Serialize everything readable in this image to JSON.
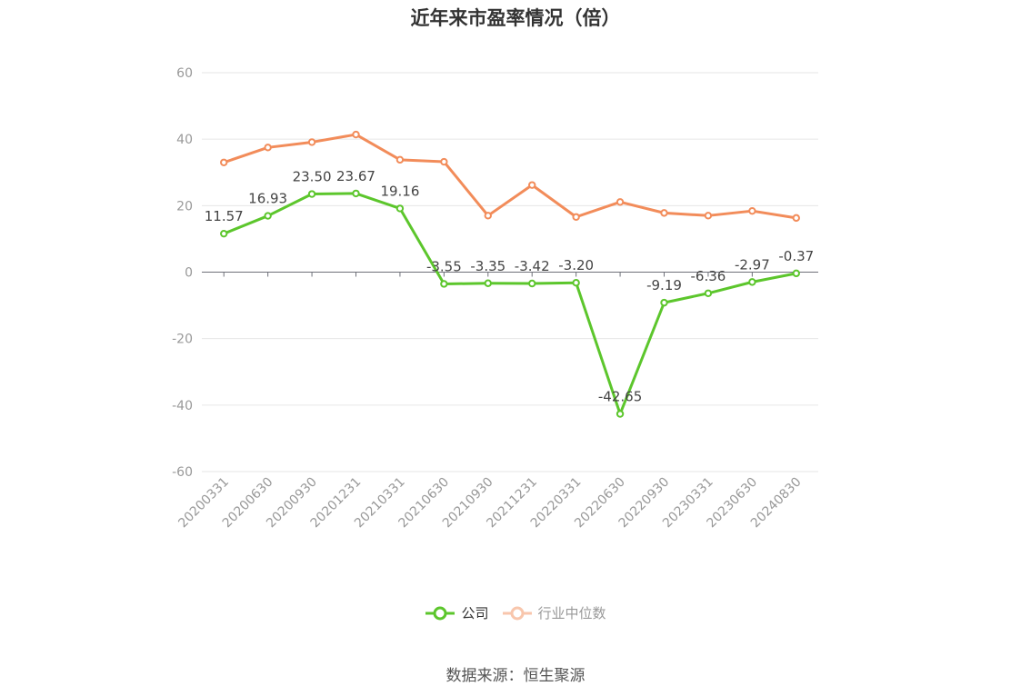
{
  "chart_data": {
    "type": "line",
    "title": "近年来市盈率情况（倍）",
    "categories": [
      "20200331",
      "20200630",
      "20200930",
      "20201231",
      "20210331",
      "20210630",
      "20210930",
      "20211231",
      "20220331",
      "20220630",
      "20220930",
      "20230331",
      "20230630",
      "20240830"
    ],
    "ylim": [
      -60,
      60
    ],
    "yticks": [
      60,
      40,
      20,
      0,
      -20,
      -40,
      -60
    ],
    "grid": true,
    "legend_position": "bottom",
    "series": [
      {
        "name": "公司",
        "color": "#5cc62c",
        "values": [
          11.57,
          16.93,
          23.5,
          23.67,
          19.16,
          -3.55,
          -3.35,
          -3.42,
          -3.2,
          -42.65,
          -9.19,
          -6.36,
          -2.97,
          -0.37
        ],
        "labels": [
          "11.57",
          "16.93",
          "23.50",
          "23.67",
          "19.16",
          "-3.55",
          "-3.35",
          "-3.42",
          "-3.20",
          "-42.65",
          "-9.19",
          "-6.36",
          "-2.97",
          "-0.37"
        ]
      },
      {
        "name": "行业中位数",
        "color": "#f28c5a",
        "values": [
          33.0,
          37.5,
          39.1,
          41.4,
          33.8,
          33.2,
          17.0,
          26.2,
          16.6,
          21.1,
          17.8,
          17.0,
          18.4,
          16.3
        ]
      }
    ]
  },
  "source": "数据来源：恒生聚源"
}
